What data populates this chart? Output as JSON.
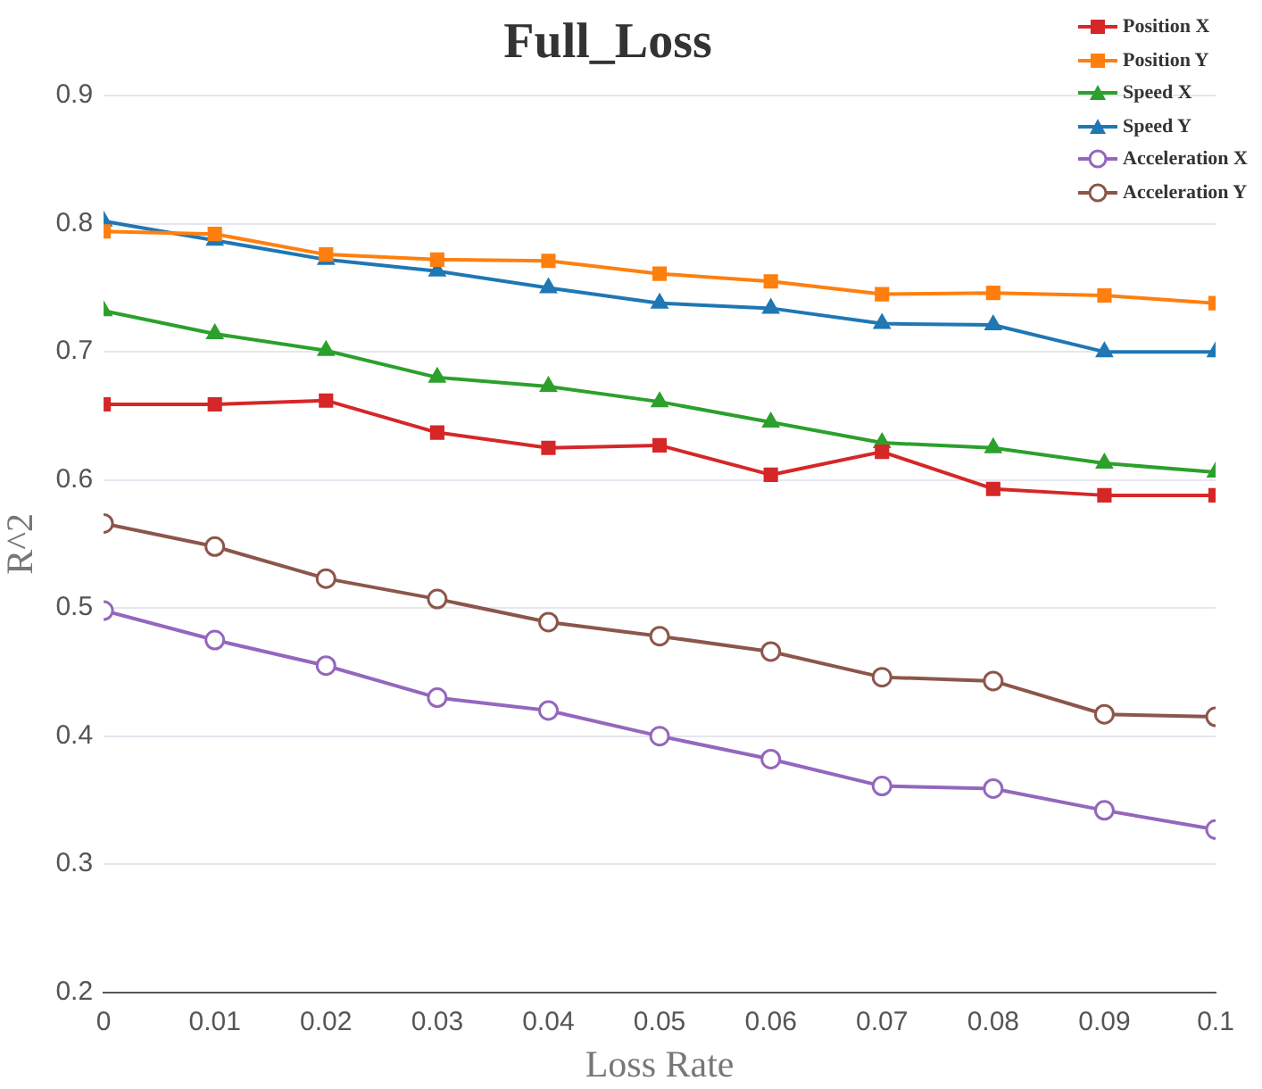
{
  "chart_data": {
    "type": "line",
    "title": "Full_Loss",
    "xlabel": "Loss Rate",
    "ylabel": "R^2",
    "x": [
      0,
      0.01,
      0.02,
      0.03,
      0.04,
      0.05,
      0.06,
      0.07,
      0.08,
      0.09,
      0.1
    ],
    "xlim": [
      0,
      0.1
    ],
    "xticks": [
      0,
      0.01,
      0.02,
      0.03,
      0.04,
      0.05,
      0.06,
      0.07,
      0.08,
      0.09,
      0.1
    ],
    "ylim": [
      0.2,
      0.9
    ],
    "yticks": [
      0.2,
      0.3,
      0.4,
      0.5,
      0.6,
      0.7,
      0.8,
      0.9
    ],
    "grid": "y",
    "legend": "top right",
    "line_style": "solid",
    "series": [
      {
        "name": "Position X",
        "color": "#d62728",
        "marker": "square",
        "values": [
          0.659,
          0.659,
          0.662,
          0.637,
          0.625,
          0.627,
          0.604,
          0.622,
          0.593,
          0.588,
          0.588
        ]
      },
      {
        "name": "Position Y",
        "color": "#ff7f0e",
        "marker": "square",
        "values": [
          0.794,
          0.792,
          0.776,
          0.772,
          0.771,
          0.761,
          0.755,
          0.745,
          0.746,
          0.744,
          0.738
        ]
      },
      {
        "name": "Speed X",
        "color": "#2ca02c",
        "marker": "triangle",
        "values": [
          0.732,
          0.714,
          0.701,
          0.68,
          0.673,
          0.661,
          0.645,
          0.629,
          0.625,
          0.613,
          0.606
        ]
      },
      {
        "name": "Speed Y",
        "color": "#1f77b4",
        "marker": "triangle",
        "values": [
          0.802,
          0.787,
          0.772,
          0.763,
          0.75,
          0.738,
          0.734,
          0.722,
          0.721,
          0.7,
          0.7
        ]
      },
      {
        "name": "Acceleration X",
        "color": "#9467bd",
        "marker": "circle",
        "values": [
          0.498,
          0.475,
          0.455,
          0.43,
          0.42,
          0.4,
          0.382,
          0.361,
          0.359,
          0.342,
          0.327
        ]
      },
      {
        "name": "Acceleration Y",
        "color": "#8c564b",
        "marker": "circle",
        "values": [
          0.566,
          0.548,
          0.523,
          0.507,
          0.489,
          0.478,
          0.466,
          0.446,
          0.443,
          0.417,
          0.415
        ]
      }
    ]
  }
}
